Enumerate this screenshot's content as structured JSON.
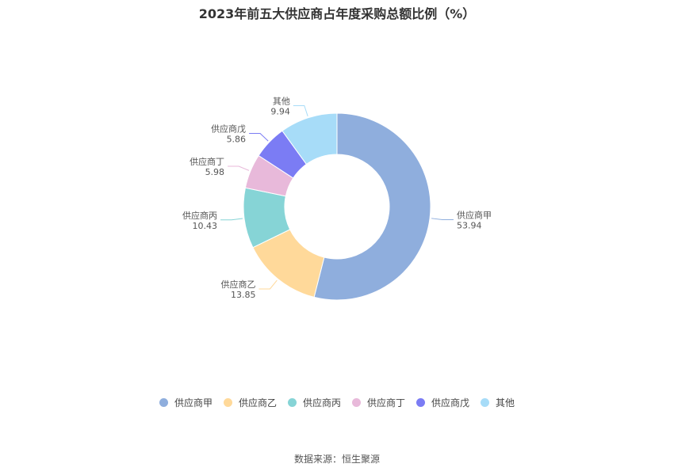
{
  "chart_data": {
    "type": "pie",
    "title": "2023年前五大供应商占年度采购总额比例（%）",
    "categories": [
      "供应商甲",
      "供应商乙",
      "供应商丙",
      "供应商丁",
      "供应商戊",
      "其他"
    ],
    "values": [
      53.94,
      13.85,
      10.43,
      5.98,
      5.86,
      9.94
    ],
    "value_labels": [
      "53.94",
      "13.85",
      "10.43",
      "5.98",
      "5.86",
      "9.94"
    ],
    "colors": [
      "#8FAEDD",
      "#FFD99A",
      "#86D4D6",
      "#E8B9DA",
      "#7B7CF4",
      "#A7DCF8"
    ],
    "donut": true,
    "legend_position": "bottom"
  },
  "source": "数据来源：恒生聚源"
}
